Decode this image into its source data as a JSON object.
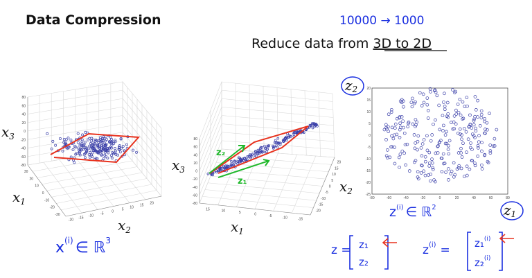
{
  "slide": {
    "title": "Data Compression",
    "subtitle_prefix": "Reduce data from ",
    "subtitle_underlined": "3D to 2D",
    "note": "10000 → 1000"
  },
  "plot_left": {
    "x1_label": "x",
    "x1_sub": "1",
    "x2_label": "x",
    "x2_sub": "2",
    "x3_label": "x",
    "x3_sub": "3",
    "x3_ticks": [
      "80",
      "60",
      "40",
      "20",
      "0",
      "-20",
      "-40",
      "-60",
      "-80"
    ],
    "x1_ticks": [
      "30",
      "20",
      "10",
      "0",
      "-10",
      "-20",
      "-30"
    ],
    "x2_ticks": [
      "-20",
      "-15",
      "-10",
      "-5",
      "0",
      "5",
      "10",
      "15",
      "20"
    ],
    "annotation_base": "x",
    "annotation_sup": "(i)",
    "annotation_rest": "∈ ℝ",
    "annotation_pow": "3"
  },
  "plot_mid": {
    "x1_label": "x",
    "x1_sub": "1",
    "x2_label": "x",
    "x2_sub": "2",
    "x3_label": "x",
    "x3_sub": "3",
    "x3_ticks": [
      "80",
      "60",
      "40",
      "20",
      "0",
      "-20",
      "-40",
      "-60",
      "-80"
    ],
    "x1_ticks": [
      "15",
      "10",
      "5",
      "0",
      "-5",
      "-10",
      "-15"
    ],
    "x2_ticks": [
      "20",
      "15",
      "10",
      "5",
      "0",
      "-5",
      "-10",
      "-15",
      "-20"
    ],
    "z1_label": "z₁",
    "z2_label": "z₂"
  },
  "plot_right": {
    "z1_label": "z",
    "z1_sub": "1",
    "z2_label": "z",
    "z2_sub": "2",
    "x_ticks": [
      "-80",
      "-60",
      "-40",
      "-20",
      "0",
      "20",
      "40",
      "60",
      "80"
    ],
    "y_ticks": [
      "20",
      "15",
      "10",
      "5",
      "0",
      "-5",
      "-10",
      "-15",
      "-20",
      "-25"
    ],
    "xlim": [
      -80,
      80
    ],
    "ylim": [
      -25,
      20
    ],
    "annotation_base": "z",
    "annotation_sup": "(i)",
    "annotation_rest": "∈ ℝ",
    "annotation_pow": "2"
  },
  "vectors": {
    "z_lhs": "z =",
    "z_top": "z₁",
    "z_bottom": "z₂",
    "zi_lhs": "z",
    "zi_sup": "(i)",
    "zi_eq": "=",
    "zi_top": "z₁",
    "zi_top_sup": "(i)",
    "zi_bottom": "z₂",
    "zi_bottom_sup": "(i)"
  },
  "colors": {
    "ink_blue": "#1a2fe0",
    "ink_red": "#e8321e",
    "ink_green": "#1fb82a",
    "points": "#3a3fa8"
  }
}
